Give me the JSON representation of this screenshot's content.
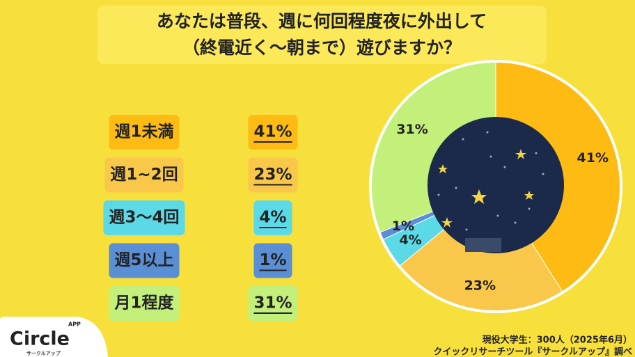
{
  "chart_data": {
    "type": "pie",
    "title": [
      "あなたは普段、週に何回程度夜に外出して",
      "（終電近く～朝まで）遊びますか？"
    ],
    "categories": [
      "週1未満",
      "週1~2回",
      "週3〜4回",
      "週5以上",
      "月1程度"
    ],
    "values": [
      41,
      23,
      4,
      1,
      31
    ],
    "value_labels": [
      "41%",
      "23%",
      "4%",
      "1%",
      "31%"
    ],
    "colors": [
      "#fdbb14",
      "#f9c84a",
      "#5bd9e6",
      "#5a8fd6",
      "#c2f07a"
    ],
    "source": [
      "現役大学生：300人（2025年6月）",
      "クイックリサーチツール『サークルアップ』調べ"
    ]
  },
  "logo": {
    "name": "Circle",
    "badge": "APP",
    "sub": "サークルアップ"
  }
}
